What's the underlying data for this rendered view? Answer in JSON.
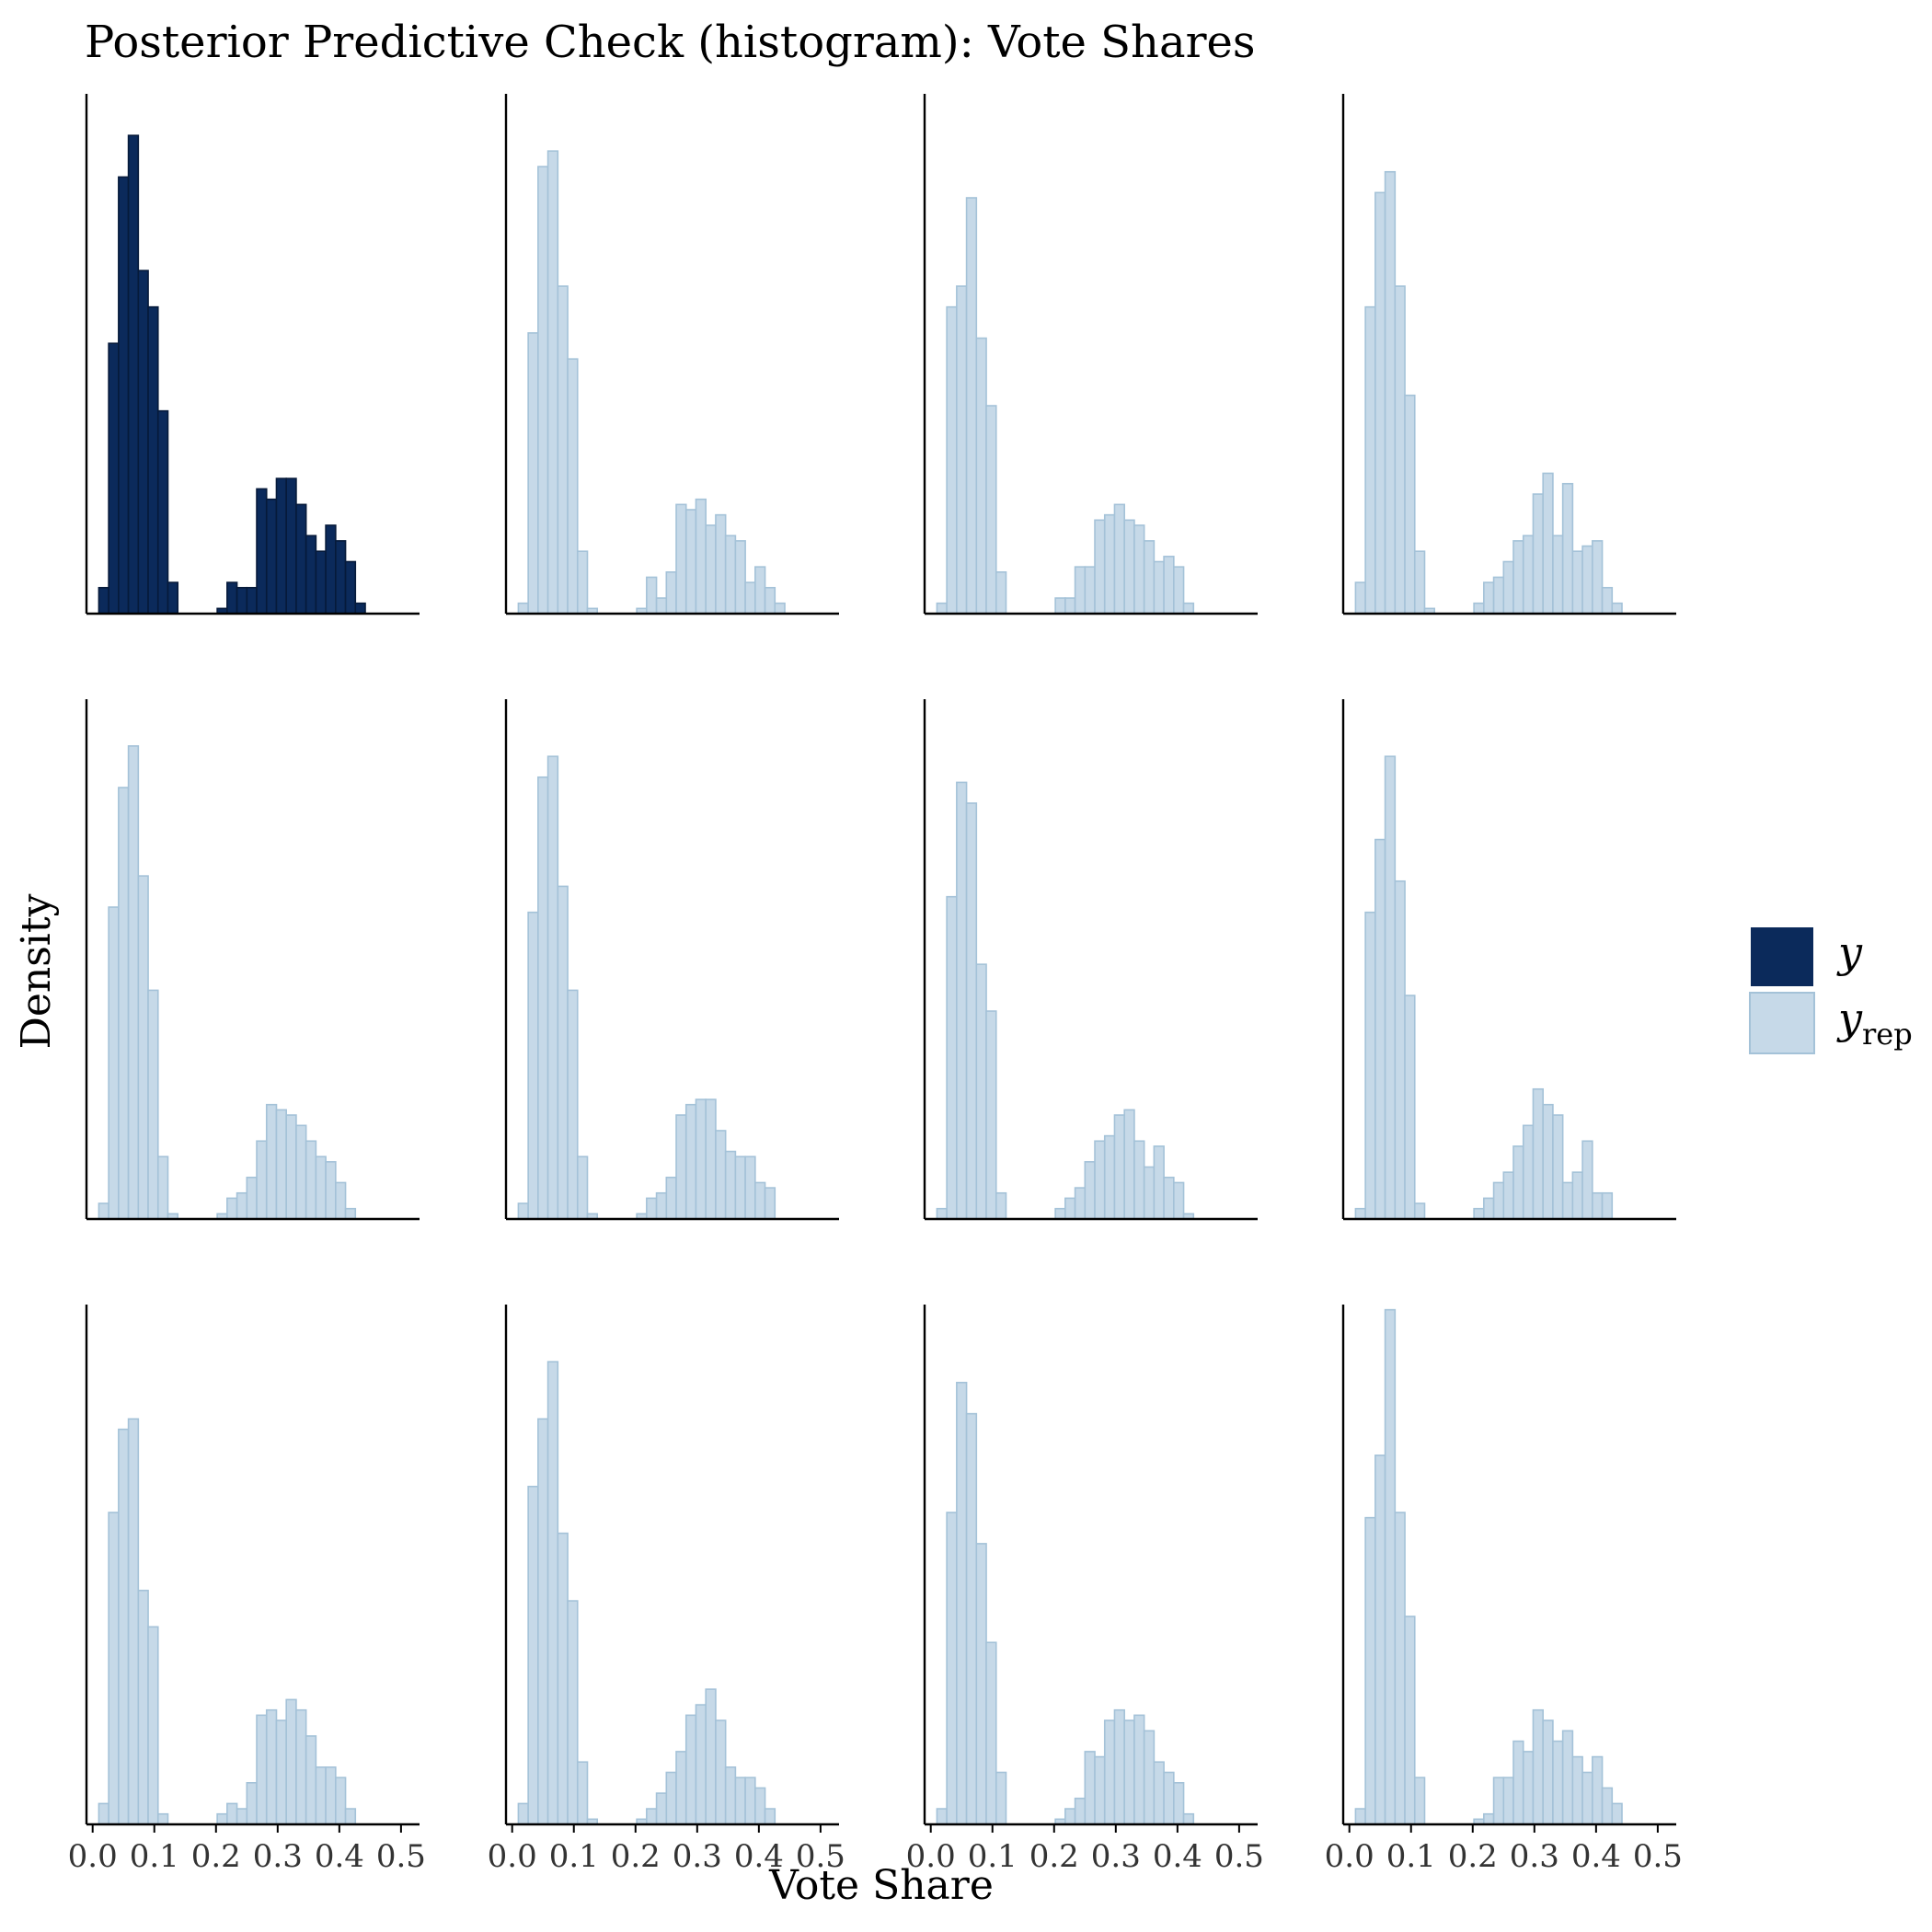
{
  "chart_data": {
    "type": "histogram",
    "title": "Posterior Predictive Check (histogram): Vote Shares",
    "xlabel": "Vote Share",
    "ylabel": "Density",
    "xlim": [
      -0.01,
      0.53
    ],
    "x_ticks": [
      "0.0",
      "0.1",
      "0.2",
      "0.3",
      "0.4",
      "0.5"
    ],
    "x_tick_values": [
      0,
      0.1,
      0.2,
      0.3,
      0.4,
      0.5
    ],
    "bin_width": 0.016,
    "bin_start": 0.01,
    "grid": false,
    "legend_position": "right",
    "legend": [
      {
        "key": "y",
        "label": "y",
        "subscript": ""
      },
      {
        "key": "yrep",
        "label": "y",
        "subscript": "rep"
      }
    ],
    "colors": {
      "y_fill": "#0b2a5b",
      "y_stroke": "#061a3a",
      "yrep_fill": "#c6d9e8",
      "yrep_stroke": "#a4c2d8"
    },
    "layout": {
      "rows": 3,
      "cols": 4
    },
    "panels": [
      {
        "series": "y",
        "ymax": 1.0,
        "values": [
          0.05,
          0.52,
          0.84,
          0.92,
          0.66,
          0.59,
          0.39,
          0.06,
          0,
          0,
          0,
          0,
          0.01,
          0.06,
          0.05,
          0.05,
          0.24,
          0.22,
          0.26,
          0.26,
          0.21,
          0.15,
          0.12,
          0.17,
          0.14,
          0.1,
          0.02,
          0,
          0
        ]
      },
      {
        "series": "yrep",
        "ymax": 1.0,
        "values": [
          0.02,
          0.54,
          0.86,
          0.89,
          0.63,
          0.49,
          0.12,
          0.01,
          0,
          0,
          0,
          0,
          0.01,
          0.07,
          0.03,
          0.08,
          0.21,
          0.2,
          0.22,
          0.17,
          0.19,
          0.15,
          0.14,
          0.06,
          0.09,
          0.05,
          0.02,
          0,
          0
        ]
      },
      {
        "series": "yrep",
        "ymax": 1.0,
        "values": [
          0.02,
          0.59,
          0.63,
          0.8,
          0.53,
          0.4,
          0.08,
          0,
          0,
          0,
          0,
          0,
          0.03,
          0.03,
          0.09,
          0.09,
          0.18,
          0.19,
          0.21,
          0.18,
          0.17,
          0.14,
          0.1,
          0.11,
          0.09,
          0.02,
          0,
          0,
          0
        ]
      },
      {
        "series": "yrep",
        "ymax": 1.0,
        "values": [
          0.06,
          0.59,
          0.81,
          0.85,
          0.63,
          0.42,
          0.12,
          0.01,
          0,
          0,
          0,
          0,
          0.02,
          0.06,
          0.07,
          0.1,
          0.14,
          0.15,
          0.23,
          0.27,
          0.15,
          0.25,
          0.12,
          0.13,
          0.14,
          0.05,
          0.02,
          0,
          0
        ]
      },
      {
        "series": "yrep",
        "ymax": 1.0,
        "values": [
          0.03,
          0.6,
          0.83,
          0.91,
          0.66,
          0.44,
          0.12,
          0.01,
          0,
          0,
          0,
          0,
          0.01,
          0.04,
          0.05,
          0.08,
          0.15,
          0.22,
          0.21,
          0.2,
          0.18,
          0.15,
          0.12,
          0.11,
          0.07,
          0.02,
          0,
          0,
          0
        ]
      },
      {
        "series": "yrep",
        "ymax": 1.0,
        "values": [
          0.03,
          0.59,
          0.85,
          0.89,
          0.64,
          0.44,
          0.12,
          0.01,
          0,
          0,
          0,
          0,
          0.01,
          0.04,
          0.05,
          0.08,
          0.2,
          0.22,
          0.23,
          0.23,
          0.17,
          0.13,
          0.12,
          0.12,
          0.07,
          0.06,
          0,
          0,
          0
        ]
      },
      {
        "series": "yrep",
        "ymax": 1.0,
        "values": [
          0.02,
          0.62,
          0.84,
          0.8,
          0.49,
          0.4,
          0.05,
          0,
          0,
          0,
          0,
          0,
          0.02,
          0.04,
          0.06,
          0.11,
          0.15,
          0.16,
          0.2,
          0.21,
          0.15,
          0.1,
          0.14,
          0.08,
          0.07,
          0.01,
          0,
          0,
          0
        ]
      },
      {
        "series": "yrep",
        "ymax": 1.0,
        "values": [
          0.02,
          0.59,
          0.73,
          0.89,
          0.65,
          0.43,
          0.03,
          0,
          0,
          0,
          0,
          0,
          0.02,
          0.04,
          0.07,
          0.09,
          0.14,
          0.18,
          0.25,
          0.22,
          0.2,
          0.07,
          0.09,
          0.15,
          0.05,
          0.05,
          0,
          0,
          0
        ]
      },
      {
        "series": "yrep",
        "ymax": 1.0,
        "values": [
          0.04,
          0.6,
          0.76,
          0.78,
          0.45,
          0.38,
          0.02,
          0,
          0,
          0,
          0,
          0,
          0.02,
          0.04,
          0.03,
          0.08,
          0.21,
          0.22,
          0.2,
          0.24,
          0.22,
          0.17,
          0.11,
          0.11,
          0.09,
          0.03,
          0,
          0,
          0
        ]
      },
      {
        "series": "yrep",
        "ymax": 1.0,
        "values": [
          0.04,
          0.65,
          0.78,
          0.89,
          0.56,
          0.43,
          0.12,
          0.01,
          0,
          0,
          0,
          0,
          0.01,
          0.03,
          0.06,
          0.1,
          0.14,
          0.21,
          0.23,
          0.26,
          0.2,
          0.11,
          0.09,
          0.09,
          0.07,
          0.03,
          0,
          0,
          0
        ]
      },
      {
        "series": "yrep",
        "ymax": 1.0,
        "values": [
          0.03,
          0.6,
          0.85,
          0.79,
          0.54,
          0.35,
          0.1,
          0,
          0,
          0,
          0,
          0,
          0.01,
          0.03,
          0.05,
          0.14,
          0.13,
          0.2,
          0.22,
          0.2,
          0.21,
          0.18,
          0.12,
          0.1,
          0.08,
          0.02,
          0,
          0,
          0
        ]
      },
      {
        "series": "yrep",
        "ymax": 1.0,
        "values": [
          0.03,
          0.59,
          0.71,
          0.99,
          0.6,
          0.4,
          0.09,
          0,
          0,
          0,
          0,
          0,
          0.01,
          0.02,
          0.09,
          0.09,
          0.16,
          0.14,
          0.22,
          0.2,
          0.16,
          0.18,
          0.13,
          0.1,
          0.13,
          0.07,
          0.04,
          0,
          0
        ]
      }
    ]
  }
}
